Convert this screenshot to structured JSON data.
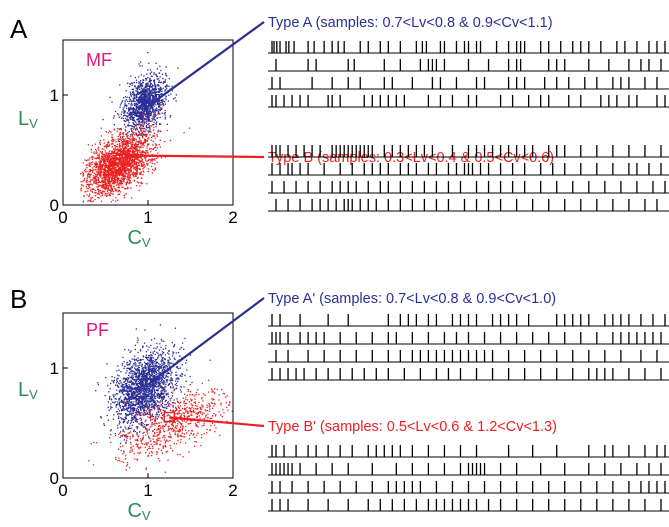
{
  "colors": {
    "blue": "#2b2f94",
    "red": "#ec2020",
    "magenta": "#e6197a",
    "green": "#2e8b57",
    "black": "#000000"
  },
  "chart_data": [
    {
      "type": "scatter",
      "panel_letter": "A",
      "tag": "MF",
      "xlabel_main": "C",
      "xlabel_sub": "V",
      "ylabel_main": "L",
      "ylabel_sub": "V",
      "xlim": [
        0,
        2
      ],
      "ylim": [
        0,
        1.5
      ],
      "xticks": [
        "0",
        "1",
        "2"
      ],
      "yticks": [
        "0",
        "1"
      ],
      "series": [
        {
          "color": "blue",
          "cx": 0.95,
          "cy": 0.92,
          "sx": 0.11,
          "sy": 0.12,
          "n": 1300
        },
        {
          "color": "red",
          "cx": 0.65,
          "cy": 0.38,
          "sx": 0.17,
          "sy": 0.12,
          "n": 2200
        }
      ],
      "highlights": [
        {
          "x": 0.95,
          "y": 0.87,
          "line_color": "blue"
        },
        {
          "x": 0.75,
          "y": 0.45,
          "line_color": "red"
        }
      ],
      "groups": [
        {
          "label": "Type A (samples: 0.7<Lv<0.8 & 0.9<Cv<1.1)",
          "color": "blue",
          "rasters": [
            [
              0.01,
              0.015,
              0.022,
              0.03,
              0.045,
              0.052,
              0.065,
              0.1,
              0.115,
              0.14,
              0.16,
              0.175,
              0.19,
              0.23,
              0.25,
              0.28,
              0.3,
              0.33,
              0.37,
              0.385,
              0.395,
              0.43,
              0.44,
              0.47,
              0.49,
              0.5,
              0.52,
              0.53,
              0.57,
              0.6,
              0.62,
              0.63,
              0.64,
              0.68,
              0.7,
              0.73,
              0.76,
              0.78,
              0.8,
              0.83,
              0.87,
              0.89,
              0.92,
              0.95,
              0.97,
              0.99
            ],
            [
              0.02,
              0.1,
              0.12,
              0.2,
              0.215,
              0.29,
              0.33,
              0.38,
              0.4,
              0.41,
              0.42,
              0.44,
              0.5,
              0.55,
              0.6,
              0.62,
              0.63,
              0.7,
              0.72,
              0.74,
              0.8,
              0.85,
              0.9,
              0.93,
              0.95,
              0.98
            ],
            [
              0.01,
              0.03,
              0.11,
              0.16,
              0.2,
              0.23,
              0.29,
              0.31,
              0.36,
              0.41,
              0.43,
              0.47,
              0.52,
              0.54,
              0.6,
              0.62,
              0.64,
              0.69,
              0.72,
              0.75,
              0.79,
              0.82,
              0.86,
              0.88,
              0.9,
              0.94,
              0.97
            ],
            [
              0.01,
              0.02,
              0.04,
              0.06,
              0.08,
              0.1,
              0.15,
              0.16,
              0.18,
              0.24,
              0.26,
              0.28,
              0.3,
              0.32,
              0.34,
              0.4,
              0.43,
              0.46,
              0.5,
              0.52,
              0.58,
              0.61,
              0.65,
              0.68,
              0.7,
              0.75,
              0.78,
              0.83,
              0.85,
              0.87,
              0.9,
              0.92,
              0.97,
              0.99
            ]
          ]
        },
        {
          "label": "Type B (samples: 0.3<Lv<0.4 & 0.5<Cv<0.6)",
          "color": "red",
          "rasters": [
            [
              0.01,
              0.02,
              0.03,
              0.05,
              0.07,
              0.09,
              0.11,
              0.13,
              0.16,
              0.17,
              0.18,
              0.19,
              0.2,
              0.21,
              0.22,
              0.23,
              0.24,
              0.25,
              0.26,
              0.29,
              0.31,
              0.33,
              0.35,
              0.37,
              0.39,
              0.41,
              0.46,
              0.5,
              0.52,
              0.54,
              0.56,
              0.58,
              0.6,
              0.62,
              0.64,
              0.66,
              0.7,
              0.72,
              0.74,
              0.78,
              0.82,
              0.86,
              0.9,
              0.94,
              0.98
            ],
            [
              0.01,
              0.03,
              0.05,
              0.06,
              0.08,
              0.1,
              0.14,
              0.18,
              0.21,
              0.24,
              0.26,
              0.28,
              0.3,
              0.33,
              0.35,
              0.37,
              0.4,
              0.42,
              0.45,
              0.47,
              0.49,
              0.5,
              0.51,
              0.53,
              0.55,
              0.58,
              0.61,
              0.64,
              0.68,
              0.71,
              0.74,
              0.78,
              0.82,
              0.86,
              0.9,
              0.92,
              0.95,
              0.98
            ],
            [
              0.01,
              0.04,
              0.07,
              0.1,
              0.13,
              0.16,
              0.18,
              0.2,
              0.22,
              0.25,
              0.28,
              0.3,
              0.33,
              0.36,
              0.39,
              0.42,
              0.45,
              0.48,
              0.52,
              0.55,
              0.58,
              0.61,
              0.64,
              0.68,
              0.72,
              0.76,
              0.8,
              0.84,
              0.88,
              0.92,
              0.96,
              0.99
            ],
            [
              0.02,
              0.05,
              0.08,
              0.11,
              0.13,
              0.15,
              0.17,
              0.19,
              0.2,
              0.21,
              0.23,
              0.25,
              0.27,
              0.3,
              0.33,
              0.36,
              0.39,
              0.42,
              0.45,
              0.49,
              0.52,
              0.55,
              0.58,
              0.62,
              0.66,
              0.7,
              0.74,
              0.78,
              0.82,
              0.86,
              0.9,
              0.94,
              0.97
            ]
          ]
        }
      ]
    },
    {
      "type": "scatter",
      "panel_letter": "B",
      "tag": "PF",
      "xlabel_main": "C",
      "xlabel_sub": "V",
      "ylabel_main": "L",
      "ylabel_sub": "V",
      "xlim": [
        0,
        2
      ],
      "ylim": [
        0,
        1.5
      ],
      "xticks": [
        "0",
        "1",
        "2"
      ],
      "yticks": [
        "0",
        "1"
      ],
      "series": [
        {
          "color": "blue",
          "cx": 0.95,
          "cy": 0.82,
          "sx": 0.16,
          "sy": 0.16,
          "n": 2000
        },
        {
          "color": "red",
          "cx": 1.3,
          "cy": 0.5,
          "sx": 0.3,
          "sy": 0.12,
          "n": 700
        }
      ],
      "highlights": [
        {
          "x": 1.0,
          "y": 0.85,
          "line_color": "blue"
        },
        {
          "x": 1.25,
          "y": 0.55,
          "line_color": "red",
          "box": true
        }
      ],
      "groups": [
        {
          "label": "Type A' (samples: 0.7<Lv<0.8 & 0.9<Cv<1.0)",
          "color": "blue",
          "rasters": [
            [
              0.01,
              0.03,
              0.08,
              0.15,
              0.2,
              0.3,
              0.33,
              0.35,
              0.37,
              0.4,
              0.42,
              0.46,
              0.48,
              0.5,
              0.52,
              0.56,
              0.58,
              0.6,
              0.62,
              0.65,
              0.72,
              0.74,
              0.76,
              0.78,
              0.8,
              0.84,
              0.86,
              0.88,
              0.9,
              0.93,
              0.96,
              0.99
            ],
            [
              0.01,
              0.02,
              0.03,
              0.05,
              0.08,
              0.1,
              0.12,
              0.14,
              0.18,
              0.22,
              0.26,
              0.3,
              0.32,
              0.36,
              0.4,
              0.44,
              0.47,
              0.5,
              0.54,
              0.58,
              0.62,
              0.66,
              0.7,
              0.74,
              0.78,
              0.82,
              0.86,
              0.88,
              0.9,
              0.92,
              0.94,
              0.96,
              0.98
            ],
            [
              0.02,
              0.05,
              0.1,
              0.14,
              0.18,
              0.22,
              0.26,
              0.3,
              0.33,
              0.36,
              0.38,
              0.4,
              0.42,
              0.44,
              0.46,
              0.48,
              0.5,
              0.52,
              0.54,
              0.56,
              0.6,
              0.64,
              0.68,
              0.72,
              0.76,
              0.8,
              0.84,
              0.88,
              0.93,
              0.97
            ],
            [
              0.01,
              0.03,
              0.05,
              0.07,
              0.09,
              0.12,
              0.15,
              0.18,
              0.21,
              0.24,
              0.27,
              0.3,
              0.34,
              0.38,
              0.42,
              0.45,
              0.48,
              0.52,
              0.56,
              0.6,
              0.64,
              0.68,
              0.72,
              0.76,
              0.8,
              0.82,
              0.84,
              0.86,
              0.9,
              0.94,
              0.98
            ]
          ]
        },
        {
          "label": "Type B' (samples: 0.5<Lv<0.6 & 1.2<Cv<1.3)",
          "color": "red",
          "rasters": [
            [
              0.01,
              0.02,
              0.04,
              0.07,
              0.1,
              0.12,
              0.15,
              0.18,
              0.21,
              0.25,
              0.27,
              0.29,
              0.31,
              0.33,
              0.36,
              0.4,
              0.44,
              0.48,
              0.52,
              0.6,
              0.66,
              0.72,
              0.8,
              0.84,
              0.86,
              0.9,
              0.94,
              0.97,
              0.99
            ],
            [
              0.01,
              0.02,
              0.03,
              0.04,
              0.05,
              0.06,
              0.08,
              0.12,
              0.16,
              0.2,
              0.26,
              0.32,
              0.36,
              0.4,
              0.44,
              0.48,
              0.5,
              0.51,
              0.52,
              0.53,
              0.54,
              0.58,
              0.62,
              0.68,
              0.74,
              0.8,
              0.84,
              0.88,
              0.92,
              0.95,
              0.98
            ],
            [
              0.01,
              0.03,
              0.06,
              0.1,
              0.14,
              0.18,
              0.22,
              0.26,
              0.3,
              0.32,
              0.34,
              0.36,
              0.38,
              0.42,
              0.46,
              0.5,
              0.54,
              0.58,
              0.62,
              0.66,
              0.7,
              0.74,
              0.78,
              0.82,
              0.86,
              0.9,
              0.93,
              0.95,
              0.97,
              0.99
            ],
            [
              0.01,
              0.03,
              0.05,
              0.1,
              0.15,
              0.2,
              0.25,
              0.28,
              0.31,
              0.34,
              0.37,
              0.4,
              0.42,
              0.44,
              0.46,
              0.48,
              0.5,
              0.52,
              0.55,
              0.58,
              0.62,
              0.66,
              0.7,
              0.74,
              0.78,
              0.82,
              0.86,
              0.9,
              0.94,
              0.98
            ]
          ]
        }
      ]
    }
  ]
}
